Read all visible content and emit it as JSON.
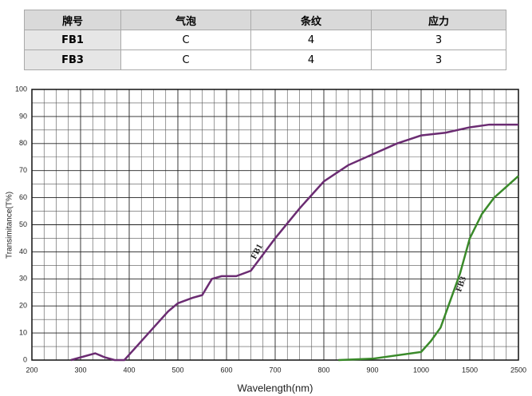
{
  "table": {
    "header": [
      "牌号",
      "气泡",
      "条纹",
      "应力"
    ],
    "rows": [
      [
        "FB1",
        "C",
        "4",
        "3"
      ],
      [
        "FB3",
        "C",
        "4",
        "3"
      ]
    ]
  },
  "chart_data": {
    "type": "line",
    "xlabel": "Wavelength(nm)",
    "ylabel": "Transimitance(T%)",
    "xscale": "piecewise",
    "grid": true,
    "xlim": [
      200,
      2500
    ],
    "xticks": [
      200,
      300,
      400,
      500,
      600,
      700,
      800,
      900,
      1000,
      1500,
      2500
    ],
    "ylim": [
      0,
      100
    ],
    "yticks": [
      0,
      10,
      20,
      30,
      40,
      50,
      60,
      70,
      80,
      90,
      100
    ],
    "series": [
      {
        "name": "FB1",
        "color": "#6b2c72",
        "x": [
          280,
          300,
          330,
          350,
          370,
          390,
          400,
          420,
          450,
          480,
          500,
          530,
          550,
          570,
          590,
          620,
          650,
          700,
          750,
          800,
          850,
          900,
          950,
          1000,
          1250,
          1500,
          1900,
          2500
        ],
        "values": [
          0,
          1,
          2.5,
          1,
          0,
          0,
          2,
          6,
          12,
          18,
          21,
          23,
          24,
          30,
          31,
          31,
          33,
          45,
          56,
          66,
          72,
          76,
          80,
          83,
          84,
          86,
          87,
          87
        ]
      },
      {
        "name": "FB3",
        "color": "#3a8a2a",
        "x": [
          830,
          900,
          1000,
          1100,
          1200,
          1300,
          1400,
          1500,
          1750,
          2000,
          2500
        ],
        "values": [
          0,
          0.5,
          3,
          7,
          12,
          22,
          32,
          45,
          54,
          60,
          68
        ]
      }
    ]
  }
}
